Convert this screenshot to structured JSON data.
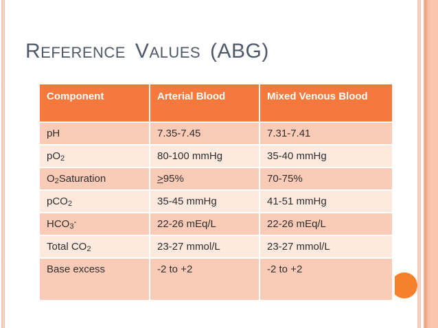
{
  "colors": {
    "header-bg": "#f5793c",
    "row-dark": "#faccb8",
    "row-light": "#fde9de",
    "title-color": "#4e5868",
    "body-text": "#2d2d2d",
    "circle-accent": "#f6812d",
    "stripe-left": "#f2c8b4",
    "stripe-right-thin": "#f8d8c9",
    "stripe-right-band": "#fbc7ae",
    "stripe-right-band-edge": "#ee9f7f"
  },
  "title": {
    "big1": "R",
    "small1": "EFERENCE",
    "big2": "V",
    "small2": "ALUES",
    "tail": "(ABG)"
  },
  "table": {
    "headers": [
      {
        "label": "Component"
      },
      {
        "label": "Arterial Blood"
      },
      {
        "label": "Mixed Venous Blood"
      }
    ],
    "rows": [
      {
        "c": {
          "pre": "pH",
          "sub": "",
          "sup": "",
          "post": ""
        },
        "a": {
          "u": "",
          "text": "7.35-7.45"
        },
        "v": {
          "u": "",
          "text": "7.31-7.41"
        }
      },
      {
        "c": {
          "pre": "pO",
          "sub": "2",
          "sup": "",
          "post": ""
        },
        "a": {
          "u": "",
          "text": "80-100 mmHg"
        },
        "v": {
          "u": "",
          "text": "35-40 mmHg"
        }
      },
      {
        "c": {
          "pre": "O",
          "sub": "2",
          "sup": "",
          "post": " Saturation"
        },
        "a": {
          "u": "> ",
          "text": "95%"
        },
        "v": {
          "u": "",
          "text": "70-75%"
        }
      },
      {
        "c": {
          "pre": "pCO",
          "sub": "2",
          "sup": "",
          "post": ""
        },
        "a": {
          "u": "",
          "text": "35-45 mmHg"
        },
        "v": {
          "u": "",
          "text": "41-51 mmHg"
        }
      },
      {
        "c": {
          "pre": "HCO",
          "sub": "3",
          "sup": "-",
          "post": ""
        },
        "a": {
          "u": "",
          "text": "22-26 mEq/L"
        },
        "v": {
          "u": "",
          "text": "22-26 mEq/L"
        }
      },
      {
        "c": {
          "pre": "Total CO",
          "sub": "2",
          "sup": "",
          "post": ""
        },
        "a": {
          "u": "",
          "text": "23-27 mmol/L"
        },
        "v": {
          "u": "",
          "text": "23-27 mmol/L"
        }
      },
      {
        "c": {
          "pre": "Base excess",
          "sub": "",
          "sup": "",
          "post": ""
        },
        "a": {
          "u": "",
          "text": "-2 to +2"
        },
        "v": {
          "u": "",
          "text": "-2 to +2"
        }
      }
    ]
  }
}
